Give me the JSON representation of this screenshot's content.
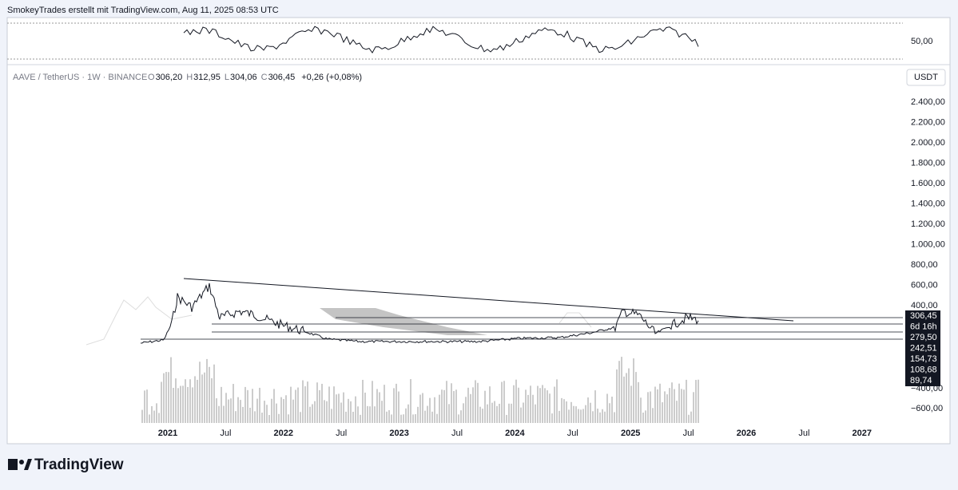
{
  "header": {
    "text": "SmokeyTrades erstellt mit TradingView.com, Aug 11, 2025 08:53 UTC"
  },
  "rsi": {
    "label": "50,00"
  },
  "legend": {
    "symbol": "AAVE / TetherUS · 1W · BINANCE",
    "open_key": "O",
    "open": "306,20",
    "high_key": "H",
    "high": "312,95",
    "low_key": "L",
    "low": "304,06",
    "close_key": "C",
    "close": "306,45",
    "change": "+0,26 (+0,08%)"
  },
  "currency": "USDT",
  "price_axis": {
    "upper": [
      "2.400,00",
      "2.200,00",
      "2.000,00",
      "1.800,00",
      "1.600,00",
      "1.400,00",
      "1.200,00",
      "1.000,00",
      "800,00",
      "600,00",
      "400,00"
    ],
    "lower": [
      "−400,00",
      "−600,00"
    ]
  },
  "badges": [
    "306,45",
    "6d 16h",
    "279,50",
    "242,51",
    "154,73",
    "108,68",
    "89,74"
  ],
  "time_axis": [
    "2021",
    "Jul",
    "2022",
    "Jul",
    "2023",
    "Jul",
    "2024",
    "Jul",
    "2025",
    "Jul",
    "2026",
    "Jul",
    "2027"
  ],
  "footer": {
    "logo": "TradingView"
  }
}
